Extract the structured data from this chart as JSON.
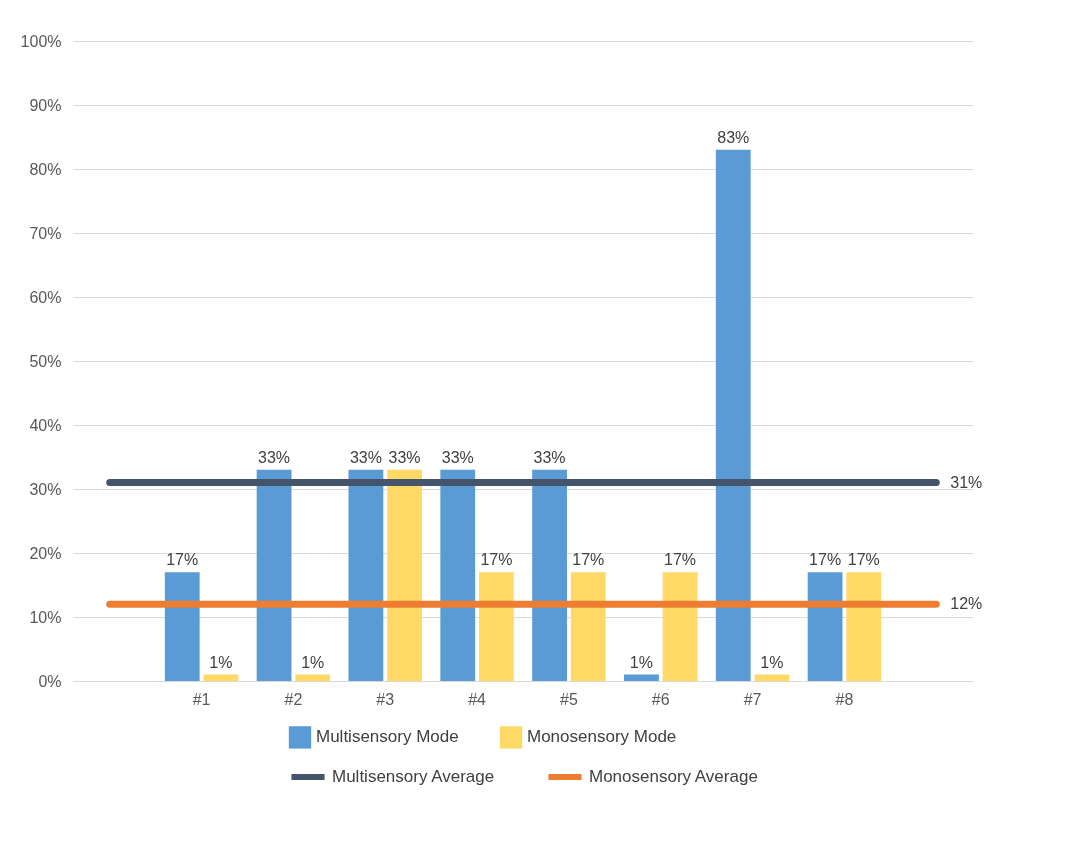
{
  "chart_data": {
    "type": "bar",
    "categories": [
      null,
      "#1",
      "#2",
      "#3",
      "#4",
      "#5",
      "#6",
      "#7",
      "#8",
      null
    ],
    "series": [
      {
        "name": "Multisensory Mode",
        "color": "#5b9bd5",
        "values": [
          null,
          17,
          33,
          33,
          33,
          33,
          1,
          83,
          17,
          null
        ],
        "value_labels": [
          null,
          "17%",
          "33%",
          "33%",
          "33%",
          "33%",
          "1%",
          "83%",
          "17%",
          null
        ]
      },
      {
        "name": "Monosensory Mode",
        "color": "#ffd966",
        "values": [
          null,
          1,
          1,
          33,
          17,
          17,
          17,
          1,
          17,
          null
        ],
        "value_labels": [
          null,
          "1%",
          "1%",
          "33%",
          "17%",
          "17%",
          "17%",
          "1%",
          "17%",
          null
        ]
      },
      {
        "name": "Multisensory Average",
        "type": "line",
        "color": "#44546a",
        "values": [
          31,
          31,
          31,
          31,
          31,
          31,
          31,
          31,
          31,
          31
        ],
        "value_labels": [
          null,
          null,
          null,
          null,
          null,
          null,
          null,
          null,
          null,
          "31%"
        ]
      },
      {
        "name": "Monosensory Average",
        "type": "line",
        "color": "#ed7d31",
        "values": [
          12,
          12,
          12,
          12,
          12,
          12,
          12,
          12,
          12,
          12
        ],
        "value_labels": [
          null,
          null,
          null,
          null,
          null,
          null,
          null,
          null,
          null,
          "12%"
        ]
      }
    ],
    "ylim": [
      0,
      100
    ],
    "yticks": [
      {
        "value": 0,
        "label": "0%"
      },
      {
        "value": 10,
        "label": "10%"
      },
      {
        "value": 20,
        "label": "20%"
      },
      {
        "value": 30,
        "label": "30%"
      },
      {
        "value": 40,
        "label": "40%"
      },
      {
        "value": 50,
        "label": "50%"
      },
      {
        "value": 60,
        "label": "60%"
      },
      {
        "value": 70,
        "label": "70%"
      },
      {
        "value": 80,
        "label": "80%"
      },
      {
        "value": 90,
        "label": "90%"
      },
      {
        "value": 100,
        "label": "100%"
      }
    ],
    "grid": "y",
    "legend": "bottom"
  }
}
